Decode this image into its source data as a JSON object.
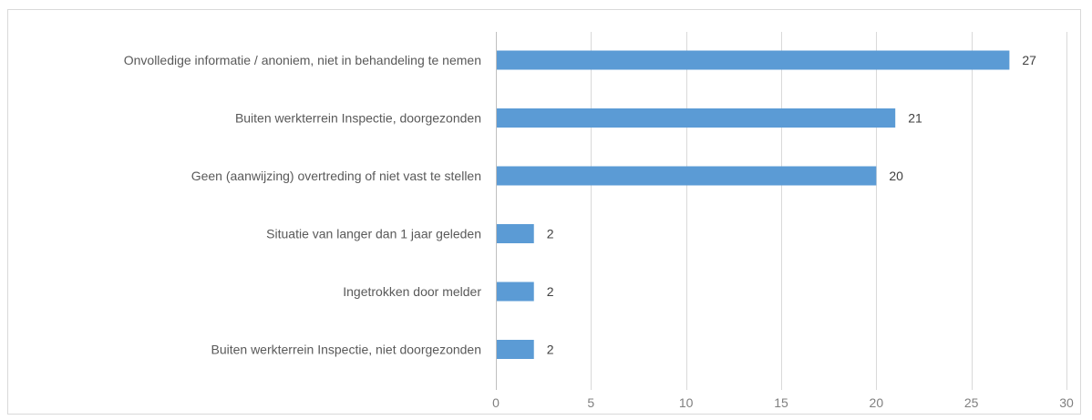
{
  "chart_data": {
    "type": "bar",
    "orientation": "horizontal",
    "title": "",
    "xlabel": "",
    "ylabel": "",
    "categories": [
      "Onvolledige informatie / anoniem, niet in behandeling te nemen",
      "Buiten werkterrein Inspectie, doorgezonden",
      "Geen (aanwijzing) overtreding of niet vast te stellen",
      "Situatie van langer dan 1 jaar geleden",
      "Ingetrokken door melder",
      "Buiten werkterrein Inspectie, niet doorgezonden"
    ],
    "values": [
      27,
      21,
      20,
      2,
      2,
      2
    ],
    "xlim": [
      0,
      30
    ],
    "xticks": [
      "0",
      "5",
      "10",
      "15",
      "20",
      "25",
      "30"
    ],
    "grid": "vertical",
    "legend": "none",
    "bar_color": "#5b9bd5",
    "data_labels": true
  }
}
